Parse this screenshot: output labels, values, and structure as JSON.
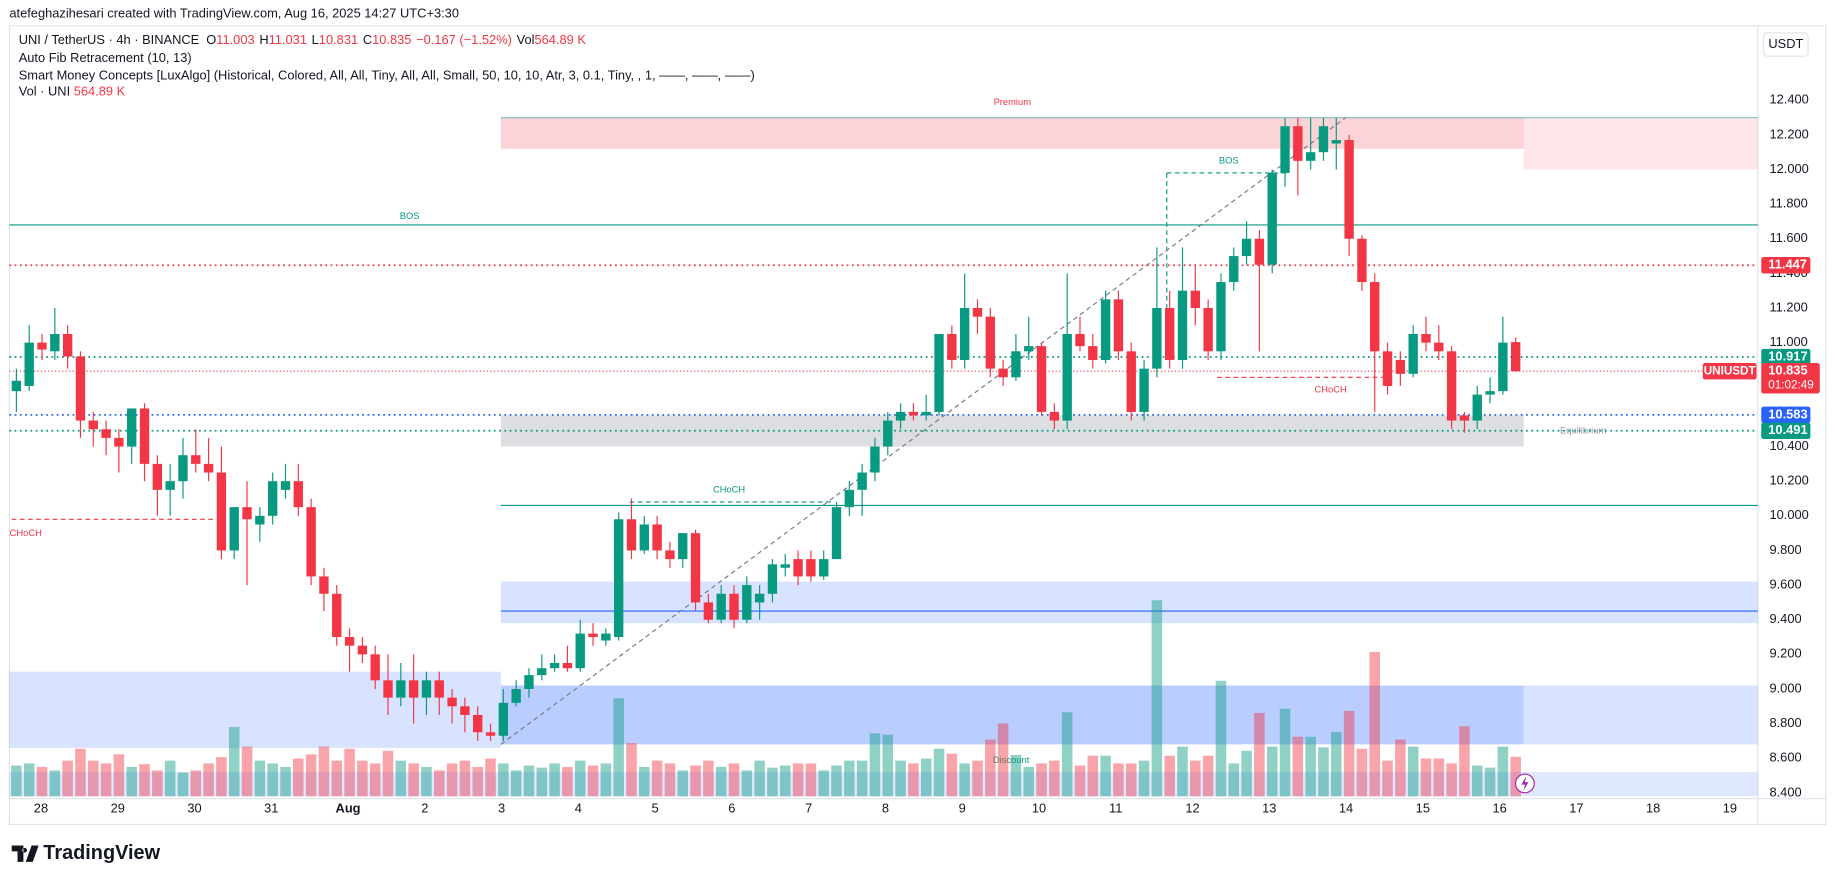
{
  "header": {
    "credit": "atefeghazihesari created with TradingView.com, Aug 16, 2025 14:27 UTC+3:30"
  },
  "legend": {
    "symbol": "UNI / TetherUS · 4h · BINANCE",
    "ohlc": [
      {
        "key": "O",
        "value": 11.003
      },
      {
        "key": "H",
        "value": 11.031
      },
      {
        "key": "L",
        "value": 10.831
      },
      {
        "key": "C",
        "value": 10.835
      }
    ],
    "change": "−0.167 (−1.52%)",
    "vol_key": "Vol",
    "vol": "564.89 K",
    "indicators": [
      "Auto Fib Retracement (10, 13)",
      "Smart Money Concepts [LuxAlgo] (Historical, Colored, All, All, Tiny, All, All, Small, 50, 10, 10, Atr, 3, 0.1, Tiny, , 1, ——, ——, ——)"
    ],
    "vol_indicator": "Vol · UNI",
    "vol_indicator_value": "564.89 K"
  },
  "chart_data": {
    "type": "candlestick",
    "currency": "USDT",
    "up_color": "#089981",
    "down_color": "#f23645",
    "xtick_labels": [
      "28",
      "29",
      "30",
      "31",
      "Aug",
      "2",
      "3",
      "4",
      "5",
      "6",
      "7",
      "8",
      "9",
      "10",
      "11",
      "12",
      "13",
      "14",
      "15",
      "16",
      "17",
      "18",
      "19"
    ],
    "ylim": [
      8.38,
      12.83
    ],
    "yticks": [
      {
        "value": 8.4,
        "label": "8.400"
      },
      {
        "value": 8.6,
        "label": "8.600"
      },
      {
        "value": 8.8,
        "label": "8.800"
      },
      {
        "value": 9.0,
        "label": "9.000"
      },
      {
        "value": 9.2,
        "label": "9.200"
      },
      {
        "value": 9.4,
        "label": "9.400"
      },
      {
        "value": 9.6,
        "label": "9.600"
      },
      {
        "value": 9.8,
        "label": "9.800"
      },
      {
        "value": 10.0,
        "label": "10.000"
      },
      {
        "value": 10.2,
        "label": "10.200"
      },
      {
        "value": 10.4,
        "label": "10.400"
      },
      {
        "value": 10.6,
        "label": "10.600"
      },
      {
        "value": 10.8,
        "label": "10.800"
      },
      {
        "value": 11.0,
        "label": "11.000"
      },
      {
        "value": 11.2,
        "label": "11.200"
      },
      {
        "value": 11.4,
        "label": "11.400"
      },
      {
        "value": 11.6,
        "label": "11.600"
      },
      {
        "value": 11.8,
        "label": "11.800"
      },
      {
        "value": 12.0,
        "label": "12.000"
      },
      {
        "value": 12.2,
        "label": "12.200"
      },
      {
        "value": 12.4,
        "label": "12.400"
      }
    ],
    "open": [
      10.72,
      10.75,
      11.0,
      10.95,
      11.05,
      10.92,
      10.55,
      10.5,
      10.45,
      10.4,
      10.62,
      10.3,
      10.15,
      10.2,
      10.35,
      10.3,
      10.25,
      9.8,
      10.05,
      9.95,
      10.0,
      10.15,
      10.2,
      10.05,
      9.65,
      9.55,
      9.3,
      9.25,
      9.2,
      9.05,
      8.95,
      9.05,
      8.95,
      9.05,
      8.95,
      8.9,
      8.85,
      8.75,
      8.73,
      8.92,
      9.0,
      9.08,
      9.12,
      9.15,
      9.12,
      9.32,
      9.28,
      9.3,
      9.98,
      9.8,
      9.95,
      9.8,
      9.75,
      9.9,
      9.5,
      9.4,
      9.55,
      9.4,
      9.5,
      9.55,
      9.7,
      9.75,
      9.75,
      9.65,
      9.75,
      10.05,
      10.15,
      10.25,
      10.4,
      10.55,
      10.6,
      10.58,
      10.6,
      11.05,
      10.9,
      11.2,
      11.15,
      10.85,
      10.8,
      10.95,
      10.98,
      10.6,
      10.55,
      11.05,
      10.98,
      10.9,
      11.25,
      10.95,
      10.6,
      10.85,
      11.2,
      10.9,
      11.3,
      11.2,
      10.95,
      11.35,
      11.5,
      11.6,
      11.45,
      11.98,
      12.25,
      12.05,
      12.1,
      12.15,
      12.17,
      11.6,
      11.35,
      10.95,
      10.9,
      10.82,
      11.05,
      11.0,
      10.95,
      10.58,
      10.55,
      10.7,
      10.72,
      11.003
    ],
    "high": [
      10.85,
      11.1,
      11.05,
      11.2,
      11.1,
      10.95,
      10.6,
      10.55,
      10.5,
      10.62,
      10.65,
      10.35,
      10.3,
      10.45,
      10.5,
      10.45,
      10.4,
      10.05,
      10.2,
      10.05,
      10.25,
      10.3,
      10.3,
      10.1,
      9.7,
      9.6,
      9.35,
      9.3,
      9.25,
      9.2,
      9.15,
      9.2,
      9.1,
      9.1,
      9.0,
      8.95,
      8.9,
      8.8,
      9.0,
      9.05,
      9.12,
      9.2,
      9.2,
      9.25,
      9.4,
      9.38,
      9.35,
      10.02,
      10.1,
      10.0,
      10.0,
      9.85,
      9.9,
      9.92,
      9.55,
      9.6,
      9.6,
      9.65,
      9.6,
      9.75,
      9.78,
      9.8,
      9.8,
      9.8,
      10.08,
      10.2,
      10.3,
      10.45,
      10.6,
      10.65,
      10.65,
      10.7,
      11.05,
      11.1,
      11.4,
      11.25,
      11.2,
      10.9,
      11.05,
      11.15,
      11.0,
      10.65,
      11.4,
      11.15,
      11.05,
      11.3,
      11.3,
      11.0,
      10.9,
      11.55,
      11.3,
      11.55,
      11.45,
      11.25,
      11.4,
      11.55,
      11.7,
      11.65,
      12.0,
      12.3,
      12.3,
      12.3,
      12.3,
      12.3,
      12.2,
      11.62,
      11.4,
      11.0,
      10.95,
      11.1,
      11.15,
      11.1,
      10.98,
      10.6,
      10.75,
      10.8,
      11.15,
      11.031
    ],
    "low": [
      10.6,
      10.72,
      10.9,
      10.9,
      10.85,
      10.45,
      10.4,
      10.35,
      10.25,
      10.3,
      10.2,
      10.0,
      10.0,
      10.1,
      10.25,
      10.2,
      9.75,
      9.75,
      9.6,
      9.85,
      9.95,
      10.1,
      10.0,
      9.6,
      9.45,
      9.25,
      9.1,
      9.15,
      9.0,
      8.85,
      8.9,
      8.8,
      8.85,
      8.85,
      8.8,
      8.75,
      8.7,
      8.7,
      8.7,
      8.9,
      8.95,
      9.05,
      9.1,
      9.1,
      9.1,
      9.25,
      9.25,
      9.28,
      9.75,
      9.78,
      9.75,
      9.7,
      9.7,
      9.45,
      9.38,
      9.38,
      9.35,
      9.38,
      9.4,
      9.5,
      9.65,
      9.6,
      9.62,
      9.63,
      9.75,
      10.0,
      10.0,
      10.2,
      10.35,
      10.5,
      10.55,
      10.55,
      10.58,
      10.85,
      10.85,
      11.05,
      10.8,
      10.75,
      10.78,
      10.9,
      10.58,
      10.5,
      10.5,
      10.95,
      10.85,
      10.88,
      10.9,
      10.55,
      10.55,
      10.8,
      10.85,
      10.85,
      11.1,
      10.9,
      10.9,
      11.3,
      11.45,
      10.95,
      11.4,
      11.9,
      11.85,
      12.0,
      12.05,
      12.0,
      11.5,
      11.3,
      10.6,
      10.7,
      10.75,
      10.8,
      10.95,
      10.9,
      10.5,
      10.48,
      10.5,
      10.65,
      10.7,
      10.831
    ],
    "close": [
      10.78,
      11.0,
      10.96,
      11.05,
      10.92,
      10.55,
      10.5,
      10.45,
      10.4,
      10.62,
      10.3,
      10.15,
      10.2,
      10.35,
      10.3,
      10.25,
      9.8,
      10.05,
      9.98,
      10.0,
      10.2,
      10.2,
      10.05,
      9.65,
      9.55,
      9.3,
      9.25,
      9.2,
      9.05,
      8.95,
      9.05,
      8.95,
      9.05,
      8.95,
      8.9,
      8.85,
      8.75,
      8.73,
      8.92,
      9.0,
      9.08,
      9.12,
      9.15,
      9.12,
      9.32,
      9.3,
      9.32,
      9.98,
      9.8,
      9.95,
      9.8,
      9.75,
      9.9,
      9.5,
      9.4,
      9.55,
      9.4,
      9.6,
      9.55,
      9.72,
      9.72,
      9.65,
      9.65,
      9.75,
      10.05,
      10.15,
      10.25,
      10.4,
      10.55,
      10.6,
      10.58,
      10.6,
      11.05,
      10.9,
      11.2,
      11.15,
      10.85,
      10.8,
      10.95,
      10.98,
      10.6,
      10.55,
      11.05,
      10.98,
      10.9,
      11.25,
      10.95,
      10.6,
      10.85,
      11.2,
      10.9,
      11.3,
      11.2,
      10.95,
      11.35,
      11.5,
      11.6,
      11.45,
      11.98,
      12.25,
      12.05,
      12.1,
      12.25,
      12.17,
      11.6,
      11.35,
      10.95,
      10.75,
      10.82,
      11.05,
      11.0,
      10.95,
      10.55,
      10.55,
      10.7,
      10.72,
      11.0,
      10.835
    ],
    "volume": [
      440,
      470,
      420,
      370,
      510,
      680,
      510,
      470,
      600,
      420,
      460,
      370,
      510,
      340,
      370,
      470,
      560,
      990,
      710,
      510,
      470,
      420,
      540,
      600,
      710,
      510,
      680,
      510,
      470,
      650,
      510,
      470,
      420,
      370,
      470,
      510,
      420,
      540,
      470,
      370,
      440,
      410,
      470,
      420,
      510,
      440,
      470,
      1400,
      760,
      420,
      510,
      470,
      370,
      440,
      510,
      420,
      470,
      370,
      510,
      410,
      440,
      470,
      470,
      370,
      440,
      510,
      510,
      900,
      880,
      510,
      470,
      540,
      680,
      610,
      470,
      510,
      810,
      1040,
      590,
      420,
      470,
      510,
      1200,
      440,
      580,
      580,
      470,
      470,
      510,
      2800,
      580,
      710,
      510,
      580,
      1650,
      470,
      650,
      1190,
      710,
      1250,
      850,
      850,
      700,
      920,
      1220,
      680,
      2060,
      510,
      810,
      710,
      540,
      540,
      470,
      1000,
      440,
      410,
      710,
      564.89
    ],
    "volume_ylim": [
      0,
      11000
    ],
    "price_labels": [
      {
        "value": 11.447,
        "label": "11.447",
        "color": "#f23645"
      },
      {
        "value": 10.917,
        "label": "10.917",
        "color": "#089981"
      },
      {
        "value": 10.583,
        "label": "10.583",
        "color": "#2962ff"
      },
      {
        "value": 10.491,
        "label": "10.491",
        "color": "#089981"
      }
    ],
    "last_price": {
      "symbol": "UNIUSDT",
      "value": 10.835,
      "label": "10.835",
      "countdown": "01:02:49",
      "color": "#f23645"
    },
    "zones": [
      {
        "top": 12.3,
        "bottom": 12.12,
        "label": "Premium",
        "color": "rgba(242,54,69,0.22)",
        "label_color": "#f23645"
      },
      {
        "top": 12.3,
        "bottom": 12.0,
        "color": "rgba(242,54,69,0.12)"
      },
      {
        "top": 10.58,
        "bottom": 10.4,
        "label": "Equilibrium",
        "color": "rgba(120,123,134,0.25)",
        "label_color": "#9598a1"
      },
      {
        "top": 9.62,
        "bottom": 9.38,
        "color": "rgba(41,98,255,0.18)"
      },
      {
        "top": 9.1,
        "bottom": 8.66,
        "color": "rgba(41,98,255,0.18)"
      },
      {
        "top": 9.02,
        "bottom": 8.68,
        "color": "rgba(41,98,255,0.32)"
      },
      {
        "top": 9.02,
        "bottom": 8.68,
        "color": "rgba(41,98,255,0.18)"
      },
      {
        "top": 8.52,
        "bottom": 8.38,
        "label": "Discount",
        "color": "rgba(41,98,255,0.15)",
        "label_color": "#089981"
      }
    ],
    "lines": [
      {
        "value": 11.68,
        "label": "BOS",
        "color": "#089981",
        "style": "solid"
      },
      {
        "value": 11.98,
        "label": "BOS",
        "color": "#089981",
        "style": "dashed"
      },
      {
        "value": 10.08,
        "label": "CHoCH",
        "color": "#089981",
        "style": "dashed"
      },
      {
        "value": 10.06,
        "color": "#089981",
        "style": "solid"
      },
      {
        "value": 9.98,
        "label": "CHoCH",
        "color": "#f23645",
        "style": "dashed"
      },
      {
        "value": 10.8,
        "label": "CHoCH",
        "color": "#f23645",
        "style": "dashed"
      },
      {
        "value": 9.45,
        "color": "#2962ff",
        "style": "solid"
      }
    ],
    "fib_line": {
      "from": 8.68,
      "to": 12.3
    }
  },
  "footer": {
    "brand": "TradingView"
  }
}
